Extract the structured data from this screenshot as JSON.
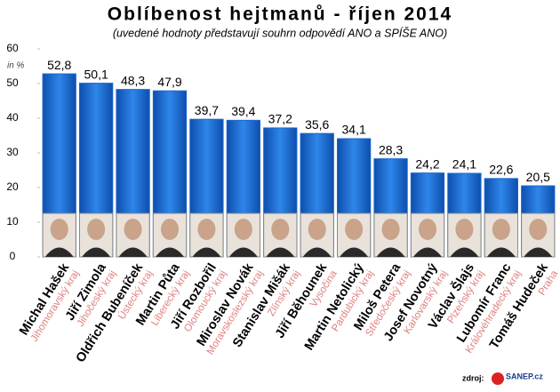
{
  "chart_data": {
    "type": "bar",
    "title": "Oblíbenost hejtmanů - říjen 2014",
    "subtitle": "(uvedené hodnoty představují souhrn odpovědí ANO a SPÍŠE ANO)",
    "y_label": "in %",
    "categories": [
      "Michal Hašek",
      "Jiří Zimola",
      "Oldřich Bubeníček",
      "Martin Půta",
      "Jiří Rozbořil",
      "Miroslav Novák",
      "Stanislav Mišák",
      "Jiří Běhounek",
      "Martin Netolický",
      "Miloš Petera",
      "Josef Novotný",
      "Václav Šlajs",
      "Lubomír Franc",
      "Tomáš Hudeček"
    ],
    "regions": [
      "Jihomoravský kraj",
      "Jihočeský kraj",
      "Ústecký kraj",
      "Liberecký kraj",
      "Olomoucký kraj",
      "Moravskoslezský kraj",
      "Zlínský kraj",
      "Vysočina",
      "Pardubický kraj",
      "Středočeský kraj",
      "Karlovarský kraj",
      "Plzeňský kraj",
      "Královéhradecký kraj",
      "Praha"
    ],
    "values": [
      52.8,
      50.1,
      48.3,
      47.9,
      39.7,
      39.4,
      37.2,
      35.6,
      34.1,
      28.3,
      24.2,
      24.1,
      22.6,
      20.5
    ],
    "value_labels": [
      "52,8",
      "50,1",
      "48,3",
      "47,9",
      "39,7",
      "39,4",
      "37,2",
      "35,6",
      "34,1",
      "28,3",
      "24,2",
      "24,1",
      "22,6",
      "20,5"
    ],
    "color": "#1a66cc",
    "region_color": "#e07f7f",
    "ylim": [
      0,
      60
    ],
    "yticks": [
      0,
      10,
      20,
      30,
      40,
      50,
      60
    ],
    "source_label": "zdroj:",
    "source": "SANEP.cz"
  }
}
